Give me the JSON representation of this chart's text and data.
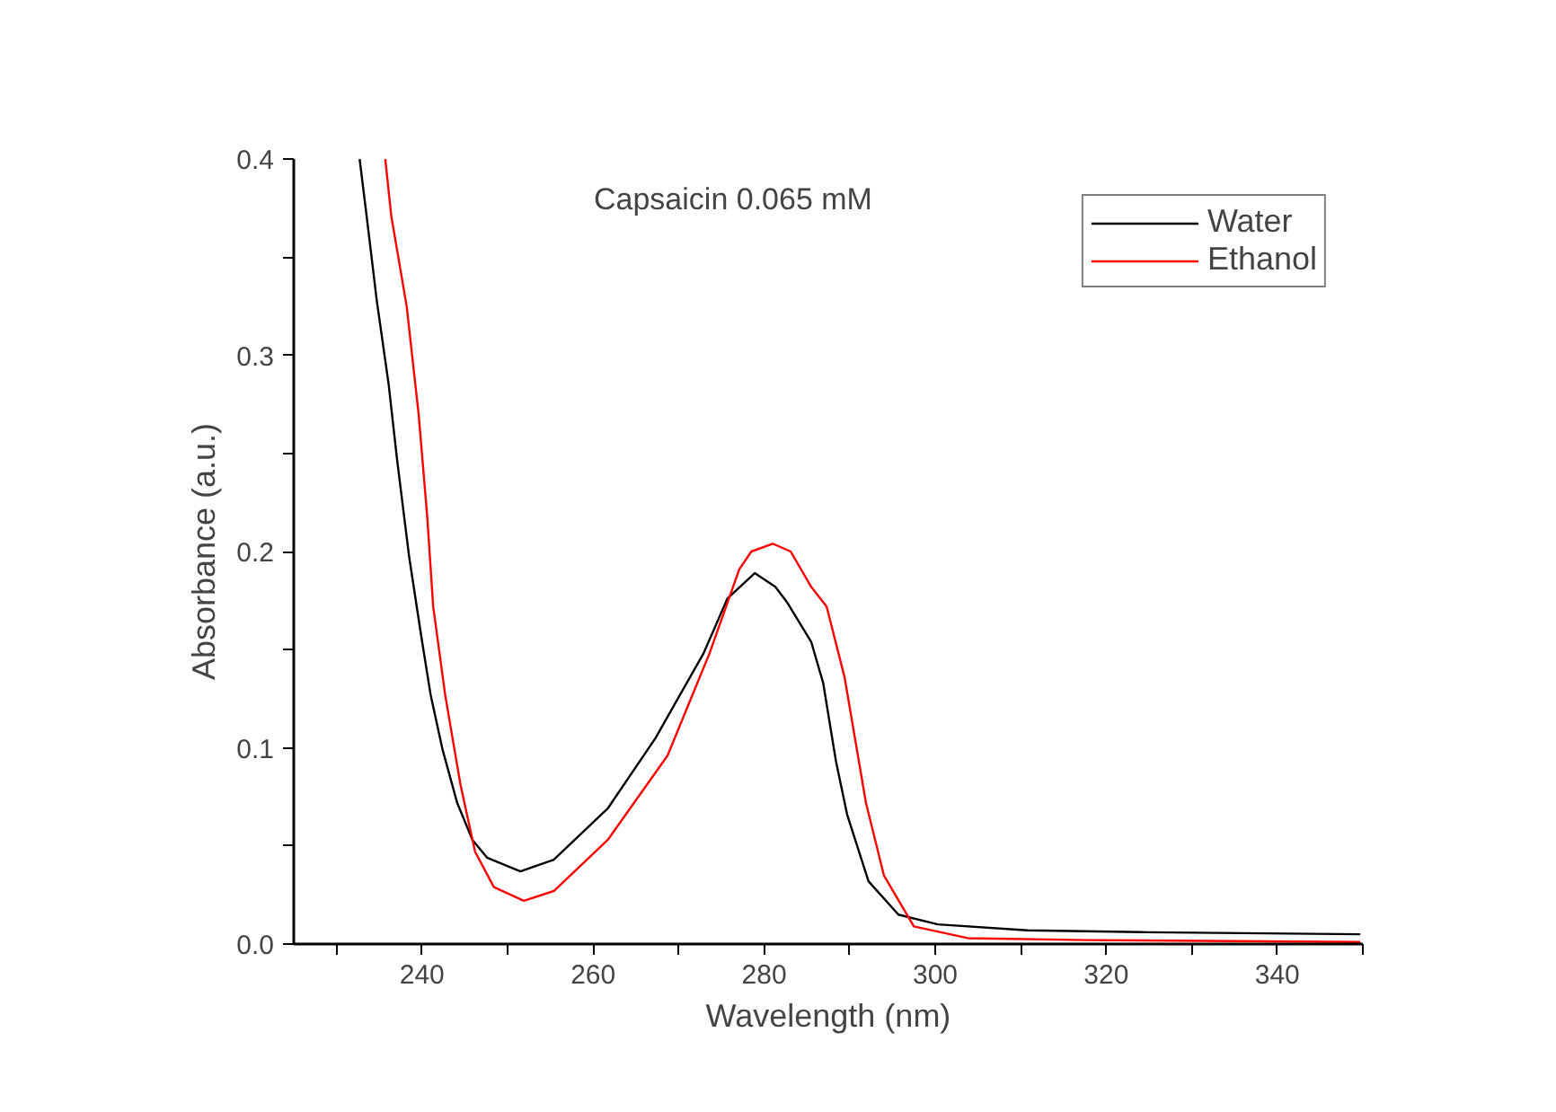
{
  "chart_data": {
    "type": "line",
    "title": "Capsaicin 0.065 mM",
    "xlabel": "Wavelength (nm)",
    "ylabel": "Absorbance (a.u.)",
    "xlim": [
      225,
      350
    ],
    "ylim": [
      0,
      0.4
    ],
    "xticks": [
      {
        "value": 230,
        "label": null
      },
      240,
      {
        "value": 250,
        "label": null
      },
      260,
      {
        "value": 270,
        "label": null
      },
      280,
      {
        "value": 290,
        "label": null
      },
      300,
      {
        "value": 310,
        "label": null
      },
      320,
      {
        "value": 330,
        "label": null
      },
      340,
      {
        "value": 350,
        "label": null
      }
    ],
    "yticks": [
      "0.0",
      {
        "value": 0.05,
        "label": null
      },
      0.1,
      {
        "value": 0.15,
        "label": null
      },
      0.2,
      {
        "value": 0.25,
        "label": null
      },
      0.3,
      {
        "value": 0.35,
        "label": null
      },
      0.4
    ],
    "grid": false,
    "legend": "top right",
    "marker": "none",
    "line_style": "solid",
    "series": [
      {
        "name": "Water",
        "color": "#000000",
        "x": [
          232.7,
          233.6,
          234.7,
          236.1,
          237.1,
          238.5,
          239.9,
          241.0,
          242.4,
          244.1,
          245.9,
          247.6,
          251.5,
          255.4,
          261.7,
          267.3,
          272.9,
          275.7,
          278.9,
          281.3,
          282.7,
          285.5,
          286.9,
          288.4,
          289.7,
          292.2,
          295.7,
          300.3,
          310.8,
          324.8,
          349.7
        ],
        "values": [
          0.4,
          0.368,
          0.328,
          0.285,
          0.246,
          0.197,
          0.157,
          0.127,
          0.099,
          0.072,
          0.053,
          0.044,
          0.037,
          0.043,
          0.069,
          0.105,
          0.148,
          0.176,
          0.189,
          0.182,
          0.174,
          0.154,
          0.133,
          0.093,
          0.066,
          0.032,
          0.015,
          0.01,
          0.007,
          0.006,
          0.005
        ]
      },
      {
        "name": "Ethanol",
        "color": "#ff0000",
        "x": [
          235.7,
          236.4,
          238.2,
          239.6,
          240.6,
          241.3,
          242.7,
          244.5,
          246.2,
          248.4,
          251.9,
          255.4,
          261.7,
          268.7,
          273.6,
          277.1,
          278.5,
          281.0,
          283.1,
          285.5,
          287.3,
          289.4,
          291.9,
          294.0,
          297.5,
          303.8,
          317.8,
          349.7
        ],
        "values": [
          0.4,
          0.371,
          0.325,
          0.27,
          0.218,
          0.172,
          0.127,
          0.081,
          0.047,
          0.029,
          0.022,
          0.027,
          0.053,
          0.096,
          0.148,
          0.191,
          0.2,
          0.204,
          0.2,
          0.182,
          0.172,
          0.136,
          0.072,
          0.035,
          0.009,
          0.003,
          0.002,
          0.001
        ]
      }
    ]
  }
}
